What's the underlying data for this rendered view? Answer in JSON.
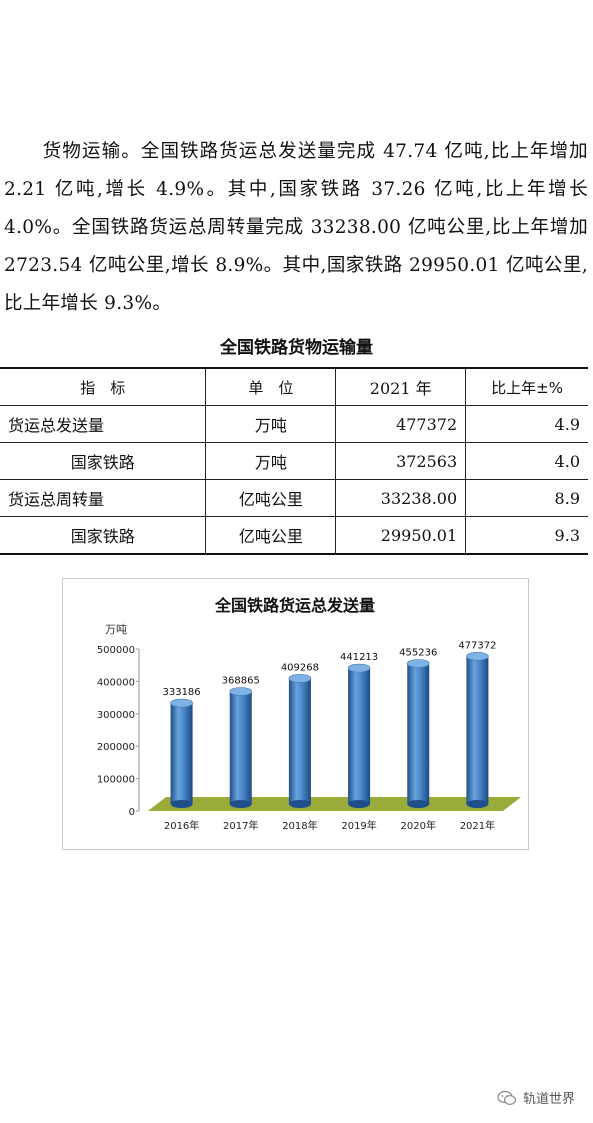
{
  "paragraph": "货物运输。全国铁路货运总发送量完成 47.74 亿吨,比上年增加 2.21 亿吨,增长 4.9%。其中,国家铁路 37.26 亿吨,比上年增长 4.0%。全国铁路货运总周转量完成 33238.00 亿吨公里,比上年增加 2723.54 亿吨公里,增长 8.9%。其中,国家铁路 29950.01 亿吨公里,比上年增长 9.3%。",
  "table": {
    "title": "全国铁路货物运输量",
    "headers": [
      "指　标",
      "单　位",
      "2021 年",
      "比上年±%"
    ],
    "rows": [
      {
        "indicator": "货运总发送量",
        "unit": "万吨",
        "value": "477372",
        "change": "4.9"
      },
      {
        "indicator": "国家铁路",
        "unit": "万吨",
        "value": "372563",
        "change": "4.0"
      },
      {
        "indicator": "货运总周转量",
        "unit": "亿吨公里",
        "value": "33238.00",
        "change": "8.9"
      },
      {
        "indicator": "国家铁路",
        "unit": "亿吨公里",
        "value": "29950.01",
        "change": "9.3"
      }
    ]
  },
  "chart_data": {
    "type": "bar",
    "title": "全国铁路货运总发送量",
    "ylabel": "万吨",
    "categories": [
      "2016年",
      "2017年",
      "2018年",
      "2019年",
      "2020年",
      "2021年"
    ],
    "values": [
      333186,
      368865,
      409268,
      441213,
      455236,
      477372
    ],
    "ylim": [
      0,
      500000
    ],
    "yticks": [
      0,
      100000,
      200000,
      300000,
      400000,
      500000
    ],
    "grid": false,
    "bar_color": "#4a86c8",
    "floor_color": "#9aab3a"
  },
  "footer": {
    "brand": "轨道世界",
    "icon": "wechat-icon"
  }
}
